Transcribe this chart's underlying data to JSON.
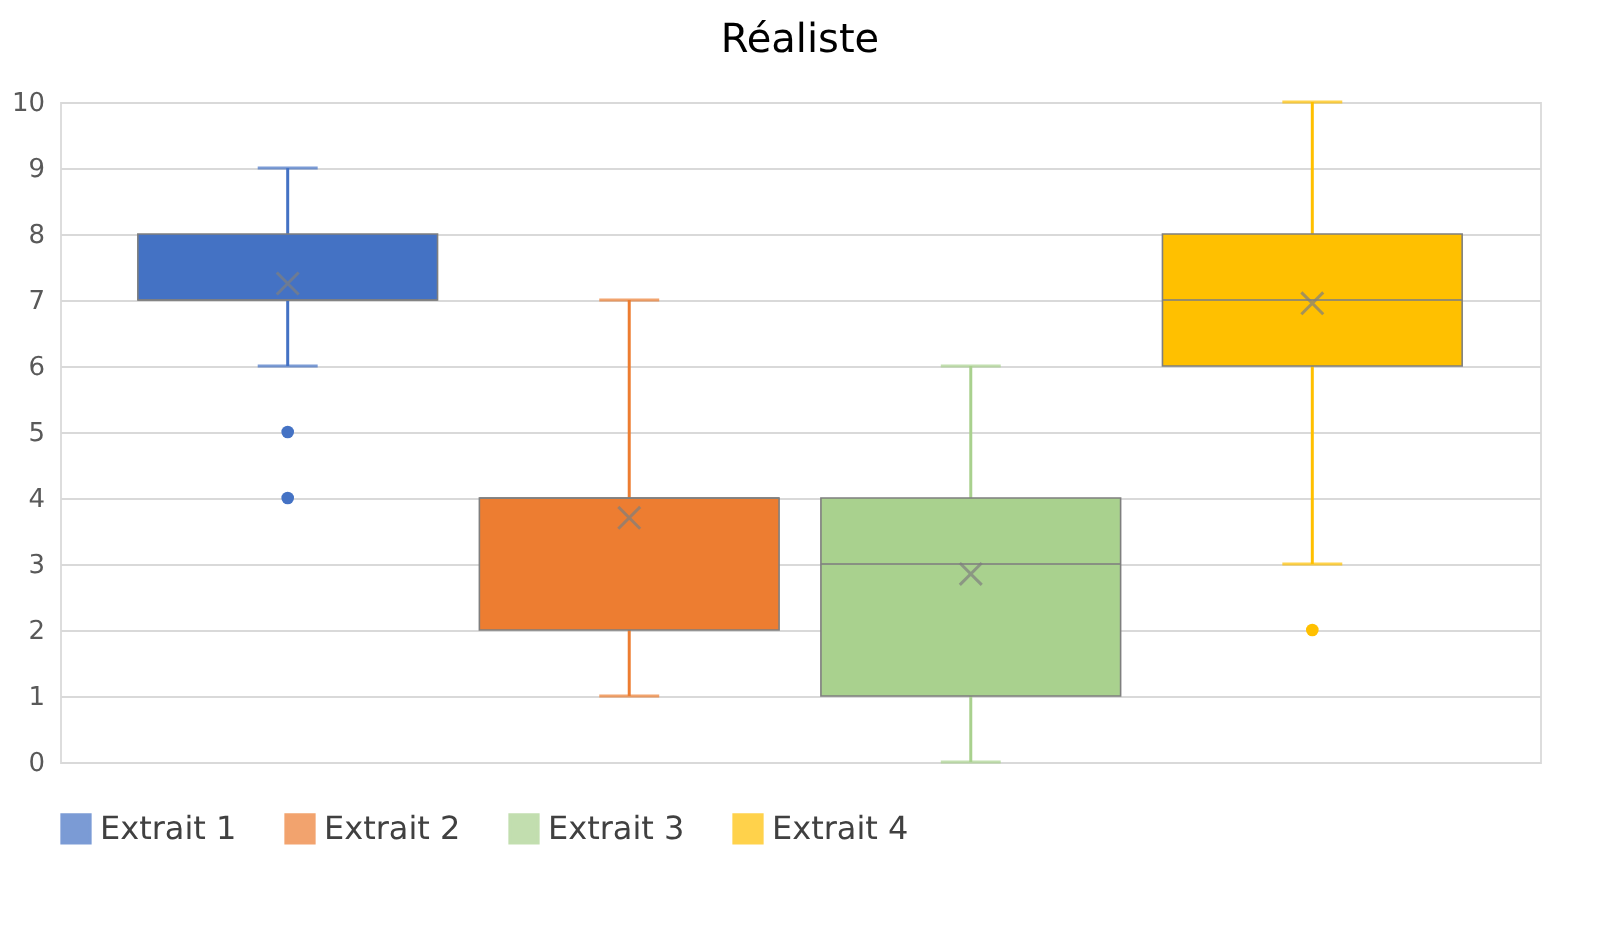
{
  "chart_data": {
    "type": "box",
    "title": "Réaliste",
    "categories": [
      null
    ],
    "series": [
      {
        "name": "Extrait 1",
        "color": "#4472c4",
        "boxes": [
          {
            "low": 6,
            "q1": 7,
            "median": 7,
            "q3": 8,
            "high": 9,
            "mean": 7.25,
            "outliers": [
              5,
              4
            ]
          }
        ]
      },
      {
        "name": "Extrait 2",
        "color": "#ed7d31",
        "boxes": [
          {
            "low": 1,
            "q1": 2,
            "median": 4,
            "q3": 4,
            "high": 7,
            "mean": 3.7
          }
        ]
      },
      {
        "name": "Extrait 3",
        "color": "#a9d18e",
        "boxes": [
          {
            "low": 0,
            "q1": 1,
            "median": 3,
            "q3": 4,
            "high": 6,
            "mean": 2.85
          }
        ]
      },
      {
        "name": "Extrait 4",
        "color": "#ffc000",
        "boxes": [
          {
            "low": 3,
            "q1": 6,
            "median": 7,
            "q3": 8,
            "high": 10,
            "mean": 6.95,
            "outliers": [
              2
            ]
          }
        ]
      }
    ],
    "ylim": [
      0,
      10
    ],
    "yticks": [
      0,
      1,
      2,
      3,
      4,
      5,
      6,
      7,
      8,
      9,
      10
    ],
    "grid": "y",
    "legend": "bottom",
    "tick_labels": "y"
  }
}
